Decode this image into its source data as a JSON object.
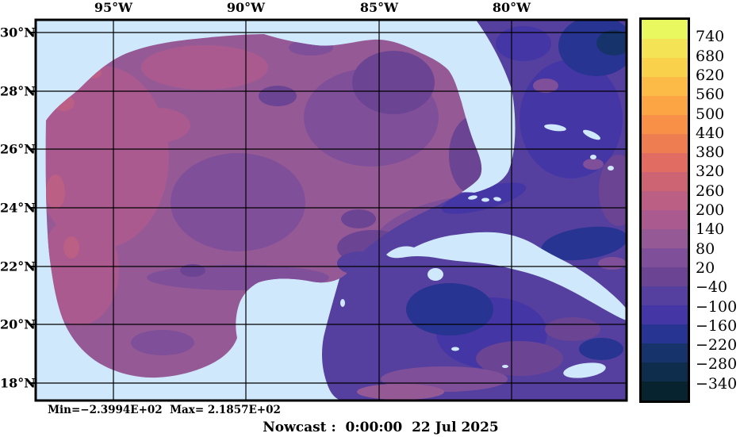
{
  "chart_data": {
    "type": "heatmap",
    "x_tick_labels": [
      "95°W",
      "90°W",
      "85°W",
      "80°W"
    ],
    "y_tick_labels": [
      "30°N",
      "28°N",
      "26°N",
      "24°N",
      "22°N",
      "20°N",
      "18°N"
    ],
    "colorbar_tick_labels": [
      "740",
      "680",
      "620",
      "560",
      "500",
      "440",
      "380",
      "320",
      "260",
      "200",
      "140",
      "80",
      "20",
      "−40",
      "−100",
      "−160",
      "−220",
      "−280",
      "−340"
    ],
    "colorbar_tick_values": [
      740,
      680,
      620,
      560,
      500,
      440,
      380,
      320,
      260,
      200,
      140,
      80,
      20,
      -40,
      -100,
      -160,
      -220,
      -280,
      -340
    ],
    "colorbar_segment_colors": [
      "#e9f85e",
      "#f4e455",
      "#f9d14b",
      "#fbbb46",
      "#fba544",
      "#f89147",
      "#ef7d52",
      "#e16d62",
      "#cd6473",
      "#bb5f84",
      "#aa5a8f",
      "#955a95",
      "#7f4f99",
      "#6b4493",
      "#56409f",
      "#4436a5",
      "#283491",
      "#17336b",
      "#0e2c4c",
      "#082330"
    ],
    "land_color": "#cfe8fb",
    "grid_color": "#000000",
    "data_min": -239.94,
    "data_max": 218.57,
    "legend_position": "right",
    "grid": "on"
  },
  "annotations": {
    "min_max": "Min=−2.3994E+02  Max= 2.1857E+02",
    "footer": "Nowcast :  0:00:00  22 Jul 2025"
  }
}
